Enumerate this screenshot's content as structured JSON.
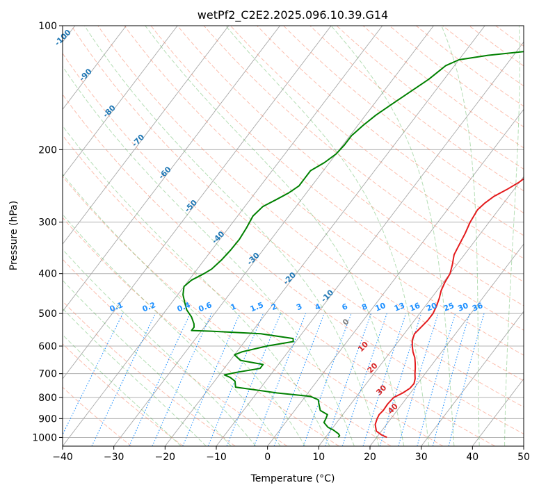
{
  "chart_data": {
    "type": "line",
    "title": "wetPf2_C2E2.2025.096.10.39.G14",
    "xlabel": "Temperature (°C)",
    "ylabel": "Pressure (hPa)",
    "xlim": [
      -40,
      50
    ],
    "ylim": [
      1050,
      100
    ],
    "y_scale": "log",
    "grid": true,
    "x_ticks": [
      -40,
      -30,
      -20,
      -10,
      0,
      10,
      20,
      30,
      40,
      50
    ],
    "y_ticks": [
      100,
      200,
      300,
      400,
      500,
      600,
      700,
      800,
      900,
      1000
    ],
    "series": [
      {
        "color": "#e31a1c",
        "points": [
          [
            22.0,
            1000
          ],
          [
            20.5,
            985
          ],
          [
            19.0,
            965
          ],
          [
            17.8,
            930
          ],
          [
            17.3,
            900
          ],
          [
            17.1,
            880
          ],
          [
            17.3,
            860
          ],
          [
            17.2,
            830
          ],
          [
            17.4,
            800
          ],
          [
            18.5,
            780
          ],
          [
            19.2,
            760
          ],
          [
            19.3,
            740
          ],
          [
            18.8,
            720
          ],
          [
            18.0,
            700
          ],
          [
            17.3,
            680
          ],
          [
            16.5,
            660
          ],
          [
            15.6,
            640
          ],
          [
            14.4,
            620
          ],
          [
            13.4,
            600
          ],
          [
            12.5,
            580
          ],
          [
            12.0,
            560
          ],
          [
            12.3,
            540
          ],
          [
            12.6,
            520
          ],
          [
            12.6,
            500
          ],
          [
            12.2,
            480
          ],
          [
            11.6,
            460
          ],
          [
            10.8,
            440
          ],
          [
            10.3,
            420
          ],
          [
            10.0,
            400
          ],
          [
            9.1,
            380
          ],
          [
            8.0,
            360
          ],
          [
            7.5,
            340
          ],
          [
            7.0,
            320
          ],
          [
            6.3,
            300
          ],
          [
            5.9,
            280
          ],
          [
            6.3,
            270
          ],
          [
            7.1,
            260
          ],
          [
            8.6,
            250
          ],
          [
            9.9,
            240
          ],
          [
            10.8,
            230
          ],
          [
            11.2,
            220
          ],
          [
            11.5,
            210
          ],
          [
            11.4,
            200
          ],
          [
            11.4,
            190
          ],
          [
            11.5,
            180
          ],
          [
            11.4,
            170
          ],
          [
            11.6,
            160
          ],
          [
            11.8,
            150
          ],
          [
            12.1,
            140
          ],
          [
            12.6,
            130
          ],
          [
            13.0,
            120
          ],
          [
            13.0,
            110
          ],
          [
            13.3,
            100
          ]
        ]
      },
      {
        "color": "#008000",
        "points": [
          [
            12.5,
            1000
          ],
          [
            12.5,
            990
          ],
          [
            12.0,
            980
          ],
          [
            10.5,
            960
          ],
          [
            9.0,
            945
          ],
          [
            7.5,
            920
          ],
          [
            7.3,
            900
          ],
          [
            7.0,
            880
          ],
          [
            5.0,
            860
          ],
          [
            4.0,
            835
          ],
          [
            3.0,
            810
          ],
          [
            1.0,
            795
          ],
          [
            -6.0,
            780
          ],
          [
            -15.0,
            755
          ],
          [
            -16.0,
            730
          ],
          [
            -17.5,
            715
          ],
          [
            -19.0,
            705
          ],
          [
            -17.0,
            695
          ],
          [
            -13.0,
            680
          ],
          [
            -13.0,
            665
          ],
          [
            -18.0,
            650
          ],
          [
            -20.0,
            630
          ],
          [
            -19.0,
            620
          ],
          [
            -15.0,
            600
          ],
          [
            -10.5,
            585
          ],
          [
            -11.0,
            575
          ],
          [
            -18.0,
            560
          ],
          [
            -28.0,
            552
          ],
          [
            -32.0,
            550
          ],
          [
            -32.0,
            540
          ],
          [
            -32.5,
            530
          ],
          [
            -34.0,
            510
          ],
          [
            -36.0,
            490
          ],
          [
            -37.5,
            470
          ],
          [
            -39.0,
            450
          ],
          [
            -40.0,
            430
          ],
          [
            -39.5,
            415
          ],
          [
            -38.0,
            400
          ],
          [
            -37.2,
            390
          ],
          [
            -36.6,
            370
          ],
          [
            -36.3,
            350
          ],
          [
            -36.2,
            330
          ],
          [
            -36.5,
            310
          ],
          [
            -37.0,
            290
          ],
          [
            -36.5,
            275
          ],
          [
            -35.0,
            265
          ],
          [
            -33.5,
            255
          ],
          [
            -32.5,
            245
          ],
          [
            -32.5,
            235
          ],
          [
            -32.5,
            225
          ],
          [
            -31.0,
            215
          ],
          [
            -30.0,
            205
          ],
          [
            -29.7,
            195
          ],
          [
            -29.7,
            185
          ],
          [
            -29.0,
            175
          ],
          [
            -28.0,
            165
          ],
          [
            -26.5,
            155
          ],
          [
            -24.8,
            145
          ],
          [
            -23.0,
            135
          ],
          [
            -21.7,
            125
          ],
          [
            -20.0,
            121
          ],
          [
            -15.0,
            118
          ],
          [
            -7.0,
            115
          ],
          [
            -3.0,
            110
          ],
          [
            -0.5,
            105
          ],
          [
            0.6,
            100
          ]
        ]
      }
    ],
    "mixing_ratio_labels": [
      "0.1",
      "0.2",
      "0.4",
      "0.6",
      "1",
      "1.5",
      "2",
      "3",
      "4",
      "6",
      "8",
      "10",
      "13",
      "16",
      "20",
      "25",
      "30",
      "36"
    ],
    "dry_adiabat_labels": [
      "-100",
      "-90",
      "-80",
      "-70",
      "-60",
      "-50",
      "-40",
      "-30",
      "-20",
      "-10"
    ],
    "moist_adiabat_labels": [
      "0",
      "10",
      "20",
      "30",
      "40"
    ]
  }
}
